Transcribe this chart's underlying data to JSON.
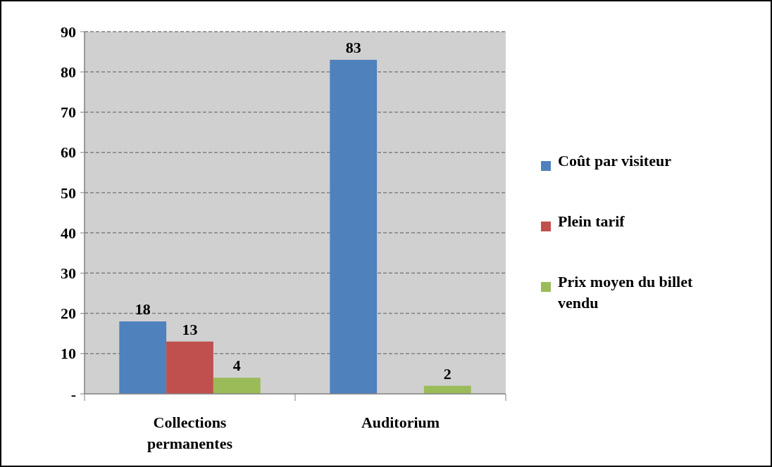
{
  "chart_data": {
    "type": "bar",
    "categories": [
      "Collections permanentes",
      "Auditorium"
    ],
    "series": [
      {
        "name": "Coût par visiteur",
        "color": "#4f81bd",
        "values": [
          18,
          83
        ]
      },
      {
        "name": "Plein tarif",
        "color": "#c0504d",
        "values": [
          13,
          null
        ]
      },
      {
        "name": "Prix moyen du billet vendu",
        "color": "#9bbb59",
        "values": [
          4,
          2
        ]
      }
    ],
    "ylim": [
      0,
      90
    ],
    "yticks": [
      {
        "value": 0,
        "label": "-"
      },
      10,
      20,
      30,
      40,
      50,
      60,
      70,
      80,
      90
    ],
    "grid": "y",
    "line_style": "dashed",
    "legend": "right",
    "data_labels": true
  }
}
